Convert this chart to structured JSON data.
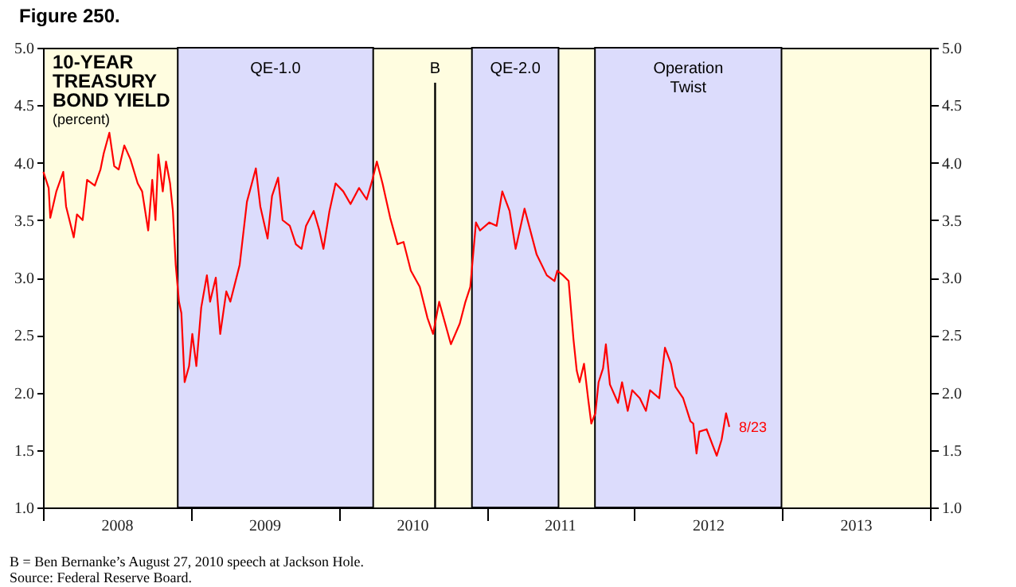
{
  "chart_data": {
    "type": "line",
    "title": "Figure 250.",
    "annotations": [
      "10-YEAR TREASURY BOND YIELD",
      "(percent)",
      "B = Ben Bernanke’s August 27, 2010 speech at Jackson Hole.",
      "Source: Federal Reserve Board.",
      {
        "text": "8/23",
        "x": "2012-08-23",
        "y": 1.7
      }
    ],
    "x": [
      "2008-01-02",
      "2008-01-15",
      "2008-01-19",
      "2008-02-03",
      "2008-02-20",
      "2008-02-27",
      "2008-03-17",
      "2008-03-25",
      "2008-04-08",
      "2008-04-19",
      "2008-05-08",
      "2008-05-22",
      "2008-05-30",
      "2008-06-13",
      "2008-06-25",
      "2008-07-06",
      "2008-07-20",
      "2008-08-04",
      "2008-08-22",
      "2008-09-02",
      "2008-09-17",
      "2008-09-27",
      "2008-10-05",
      "2008-10-12",
      "2008-10-23",
      "2008-10-31",
      "2008-11-10",
      "2008-11-17",
      "2008-11-24",
      "2008-12-02",
      "2008-12-08",
      "2008-12-16",
      "2008-12-27",
      "2009-01-04",
      "2009-01-14",
      "2009-01-26",
      "2009-02-09",
      "2009-02-17",
      "2009-03-03",
      "2009-03-14",
      "2009-03-29",
      "2009-04-08",
      "2009-05-01",
      "2009-05-19",
      "2009-06-10",
      "2009-06-21",
      "2009-07-09",
      "2009-07-20",
      "2009-08-04",
      "2009-08-15",
      "2009-09-02",
      "2009-09-17",
      "2009-10-01",
      "2009-10-12",
      "2009-10-31",
      "2009-11-14",
      "2009-11-24",
      "2009-12-09",
      "2009-12-24",
      "2010-01-12",
      "2010-01-30",
      "2010-02-20",
      "2010-03-11",
      "2010-03-25",
      "2010-04-05",
      "2010-04-19",
      "2010-05-08",
      "2010-05-26",
      "2010-06-10",
      "2010-06-28",
      "2010-07-20",
      "2010-08-08",
      "2010-08-22",
      "2010-09-06",
      "2010-09-24",
      "2010-10-05",
      "2010-10-27",
      "2010-11-10",
      "2010-11-22",
      "2010-12-06",
      "2010-12-16",
      "2011-01-08",
      "2011-01-26",
      "2011-02-09",
      "2011-02-27",
      "2011-03-14",
      "2011-04-05",
      "2011-05-05",
      "2011-05-30",
      "2011-06-18",
      "2011-06-25",
      "2011-07-09",
      "2011-07-23",
      "2011-08-04",
      "2011-08-12",
      "2011-08-19",
      "2011-08-30",
      "2011-09-09",
      "2011-09-17",
      "2011-09-27",
      "2011-10-05",
      "2011-10-16",
      "2011-10-23",
      "2011-11-02",
      "2011-11-22",
      "2011-12-02",
      "2011-12-16",
      "2011-12-27",
      "2012-01-15",
      "2012-01-30",
      "2012-02-09",
      "2012-03-03",
      "2012-03-17",
      "2012-04-01",
      "2012-04-12",
      "2012-05-01",
      "2012-05-19",
      "2012-05-26",
      "2012-06-03",
      "2012-06-10",
      "2012-06-28",
      "2012-07-13",
      "2012-07-23",
      "2012-08-04",
      "2012-08-15",
      "2012-08-23"
    ],
    "series": [
      {
        "color": "#ff0000",
        "values": [
          3.92,
          3.78,
          3.52,
          3.75,
          3.92,
          3.62,
          3.35,
          3.55,
          3.5,
          3.85,
          3.8,
          3.94,
          4.08,
          4.26,
          3.97,
          3.94,
          4.15,
          4.03,
          3.82,
          3.75,
          3.41,
          3.85,
          3.5,
          4.07,
          3.75,
          4.01,
          3.82,
          3.58,
          3.11,
          2.79,
          2.69,
          2.09,
          2.23,
          2.51,
          2.23,
          2.74,
          3.02,
          2.79,
          3.0,
          2.51,
          2.88,
          2.79,
          3.11,
          3.66,
          3.95,
          3.62,
          3.34,
          3.71,
          3.87,
          3.5,
          3.45,
          3.29,
          3.25,
          3.45,
          3.58,
          3.41,
          3.25,
          3.58,
          3.82,
          3.75,
          3.64,
          3.78,
          3.68,
          3.85,
          4.01,
          3.82,
          3.52,
          3.29,
          3.31,
          3.06,
          2.92,
          2.65,
          2.51,
          2.79,
          2.56,
          2.42,
          2.6,
          2.79,
          2.92,
          3.48,
          3.41,
          3.48,
          3.45,
          3.75,
          3.58,
          3.25,
          3.6,
          3.2,
          3.02,
          2.97,
          3.06,
          3.02,
          2.97,
          2.46,
          2.19,
          2.09,
          2.25,
          1.95,
          1.73,
          1.82,
          2.09,
          2.21,
          2.42,
          2.07,
          1.91,
          2.09,
          1.84,
          2.02,
          1.95,
          1.84,
          2.02,
          1.95,
          2.39,
          2.25,
          2.05,
          1.95,
          1.75,
          1.73,
          1.47,
          1.66,
          1.68,
          1.54,
          1.45,
          1.59,
          1.82,
          1.7
        ]
      }
    ],
    "xlim": [
      "2008-01-01",
      "2014-01-01"
    ],
    "xticks": [
      {
        "value": "2008-01-01",
        "label": null
      },
      {
        "value": "2009-01-01",
        "label": null
      },
      {
        "value": "2010-01-01",
        "label": null
      },
      {
        "value": "2011-01-01",
        "label": null
      },
      {
        "value": "2012-01-01",
        "label": null
      },
      {
        "value": "2013-01-01",
        "label": null
      },
      {
        "value": "2014-01-01",
        "label": null
      },
      {
        "value": "2008-07-01",
        "label": "2008"
      },
      {
        "value": "2009-07-01",
        "label": "2009"
      },
      {
        "value": "2010-07-01",
        "label": "2010"
      },
      {
        "value": "2011-07-01",
        "label": "2011"
      },
      {
        "value": "2012-07-01",
        "label": "2012"
      },
      {
        "value": "2013-07-01",
        "label": "2013"
      }
    ],
    "ylim": [
      1,
      5
    ],
    "yticks": [
      {
        "value": 1,
        "label": "1.0"
      },
      {
        "value": 1.5,
        "label": "1.5"
      },
      {
        "value": 2,
        "label": "2.0"
      },
      {
        "value": 2.5,
        "label": "2.5"
      },
      {
        "value": 3,
        "label": "3.0"
      },
      {
        "value": 3.5,
        "label": "3.5"
      },
      {
        "value": 4,
        "label": "4.0"
      },
      {
        "value": 4.5,
        "label": "4.5"
      },
      {
        "value": 5,
        "label": "5.0"
      }
    ],
    "y2lim": [
      1,
      5
    ],
    "y2ticks": [
      {
        "value": 1,
        "label": "1.0"
      },
      {
        "value": 1.5,
        "label": "1.5"
      },
      {
        "value": 2,
        "label": "2.0"
      },
      {
        "value": 2.5,
        "label": "2.5"
      },
      {
        "value": 3,
        "label": "3.0"
      },
      {
        "value": 3.5,
        "label": "3.5"
      },
      {
        "value": 4,
        "label": "4.0"
      },
      {
        "value": 4.5,
        "label": "4.5"
      },
      {
        "value": 5,
        "label": "5.0"
      }
    ],
    "bands": [
      {
        "axis": "x",
        "from": "2008-11-29",
        "to": "2010-03-27",
        "label": "QE-1.0",
        "color": "#dcdcfc"
      },
      {
        "axis": "x",
        "from": "2010-11-26",
        "to": "2011-06-28",
        "label": "QE-2.0",
        "color": "#dcdcfc"
      },
      {
        "axis": "x",
        "from": "2011-09-26",
        "to": "2012-12-30",
        "label": "Operation Twist",
        "color": "#dcdcfc"
      }
    ],
    "ref_lines": [
      {
        "axis": "x",
        "value": "2010-08-27",
        "label": "B",
        "color": "#000000"
      }
    ]
  }
}
